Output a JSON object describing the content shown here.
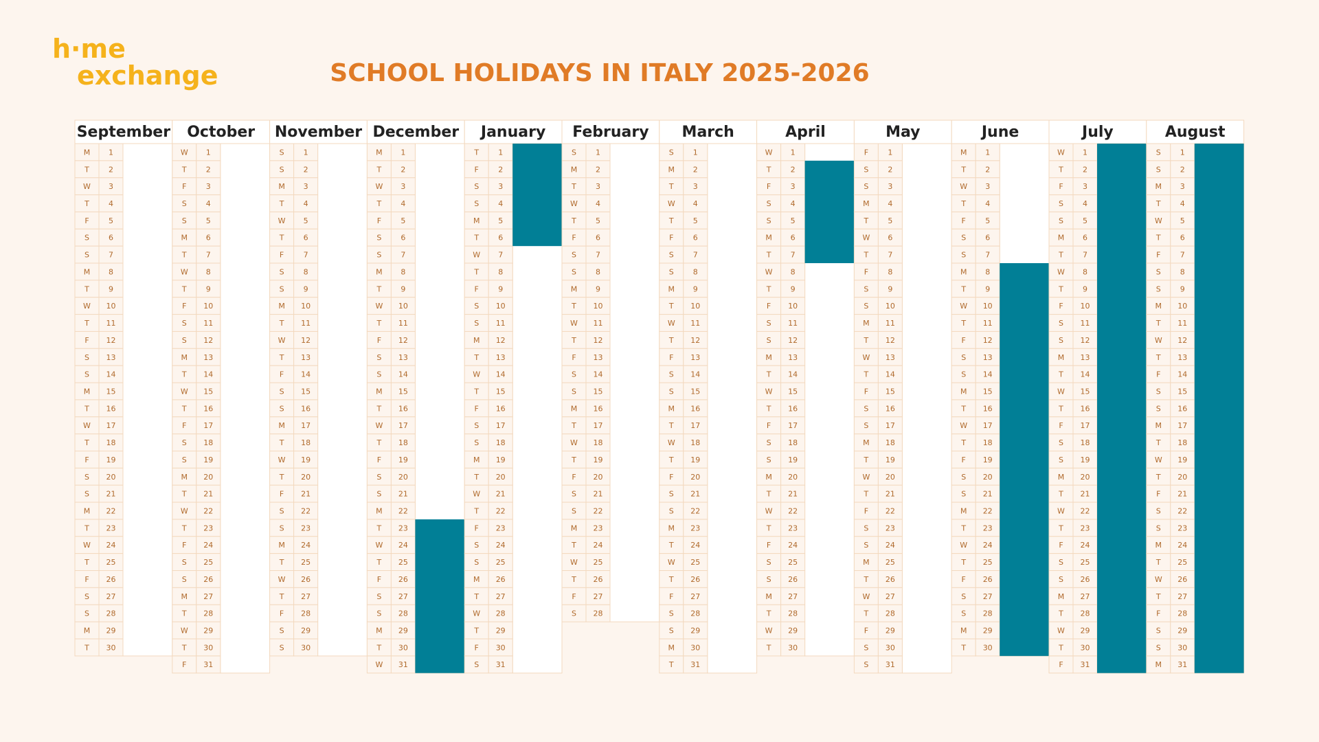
{
  "logo": [
    "h·me",
    "exchange"
  ],
  "title": "SCHOOL HOLIDAYS IN ITALY 2025-2026",
  "months": [
    {
      "name": "September",
      "weekdays": [
        "M",
        "T",
        "W",
        "T",
        "F",
        "S",
        "S",
        "M",
        "T",
        "W",
        "T",
        "F",
        "S",
        "S",
        "M",
        "T",
        "W",
        "T",
        "F",
        "S",
        "S",
        "M",
        "T",
        "W",
        "T",
        "F",
        "S",
        "S",
        "M",
        "T"
      ],
      "dates": [
        1,
        2,
        3,
        4,
        5,
        6,
        7,
        8,
        9,
        10,
        11,
        12,
        13,
        14,
        15,
        16,
        17,
        18,
        19,
        20,
        21,
        22,
        23,
        24,
        25,
        26,
        27,
        28,
        29,
        30
      ]
    },
    {
      "name": "October",
      "weekdays": [
        "W",
        "T",
        "F",
        "S",
        "S",
        "M",
        "T",
        "W",
        "T",
        "F",
        "S",
        "S",
        "M",
        "T",
        "W",
        "T",
        "F",
        "S",
        "S",
        "M",
        "T",
        "W",
        "T",
        "F",
        "S",
        "S",
        "M",
        "T",
        "W",
        "T",
        "F"
      ],
      "dates": [
        1,
        2,
        3,
        4,
        5,
        6,
        7,
        8,
        9,
        10,
        11,
        12,
        13,
        14,
        15,
        16,
        17,
        18,
        19,
        20,
        21,
        22,
        23,
        24,
        25,
        26,
        27,
        28,
        29,
        30,
        31
      ]
    },
    {
      "name": "November",
      "weekdays": [
        "S",
        "S",
        "M",
        "T",
        "W",
        "T",
        "F",
        "S",
        "S",
        "M",
        "T",
        "W",
        "T",
        "F",
        "S",
        "S",
        "M",
        "T",
        "W",
        "T",
        "F",
        "S",
        "S",
        "M",
        "T",
        "W",
        "T",
        "F",
        "S",
        "S"
      ],
      "dates": [
        1,
        2,
        3,
        4,
        5,
        6,
        7,
        8,
        9,
        10,
        11,
        12,
        13,
        14,
        15,
        16,
        17,
        18,
        19,
        20,
        21,
        22,
        23,
        24,
        25,
        26,
        27,
        28,
        29,
        30
      ]
    },
    {
      "name": "December",
      "weekdays": [
        "M",
        "T",
        "W",
        "T",
        "F",
        "S",
        "S",
        "M",
        "T",
        "W",
        "T",
        "F",
        "S",
        "S",
        "M",
        "T",
        "W",
        "T",
        "F",
        "S",
        "S",
        "M",
        "T",
        "W",
        "T",
        "F",
        "S",
        "S",
        "M",
        "T",
        "W"
      ],
      "dates": [
        1,
        2,
        3,
        4,
        5,
        6,
        7,
        8,
        9,
        10,
        11,
        12,
        13,
        14,
        15,
        16,
        17,
        18,
        19,
        20,
        21,
        22,
        23,
        24,
        25,
        26,
        27,
        28,
        29,
        30,
        31
      ],
      "holiday": [
        23,
        31
      ]
    },
    {
      "name": "January",
      "weekdays": [
        "T",
        "F",
        "S",
        "S",
        "M",
        "T",
        "W",
        "T",
        "F",
        "S",
        "S",
        "M",
        "T",
        "W",
        "T",
        "F",
        "S",
        "S",
        "M",
        "T",
        "W",
        "T",
        "F",
        "S",
        "S",
        "M",
        "T",
        "W",
        "T",
        "F",
        "S"
      ],
      "dates": [
        1,
        2,
        3,
        4,
        5,
        6,
        7,
        8,
        9,
        10,
        11,
        12,
        13,
        14,
        15,
        16,
        17,
        18,
        19,
        20,
        21,
        22,
        23,
        24,
        25,
        26,
        27,
        28,
        29,
        30,
        31
      ],
      "holiday": [
        1,
        6
      ]
    },
    {
      "name": "February",
      "weekdays": [
        "S",
        "M",
        "T",
        "W",
        "T",
        "F",
        "S",
        "S",
        "M",
        "T",
        "W",
        "T",
        "F",
        "S",
        "S",
        "M",
        "T",
        "W",
        "T",
        "F",
        "S",
        "S",
        "M",
        "T",
        "W",
        "T",
        "F",
        "S"
      ],
      "dates": [
        1,
        2,
        3,
        4,
        5,
        6,
        7,
        8,
        9,
        10,
        11,
        12,
        13,
        14,
        15,
        16,
        17,
        18,
        19,
        20,
        21,
        22,
        23,
        24,
        25,
        26,
        27,
        28
      ]
    },
    {
      "name": "March",
      "weekdays": [
        "S",
        "M",
        "T",
        "W",
        "T",
        "F",
        "S",
        "S",
        "M",
        "T",
        "W",
        "T",
        "F",
        "S",
        "S",
        "M",
        "T",
        "W",
        "T",
        "F",
        "S",
        "S",
        "M",
        "T",
        "W",
        "T",
        "F",
        "S",
        "S",
        "M",
        "T"
      ],
      "dates": [
        1,
        2,
        3,
        4,
        5,
        6,
        7,
        8,
        9,
        10,
        11,
        12,
        13,
        14,
        15,
        16,
        17,
        18,
        19,
        20,
        21,
        22,
        23,
        24,
        25,
        26,
        27,
        28,
        29,
        30,
        31
      ]
    },
    {
      "name": "April",
      "weekdays": [
        "W",
        "T",
        "F",
        "S",
        "S",
        "M",
        "T",
        "W",
        "T",
        "F",
        "S",
        "S",
        "M",
        "T",
        "W",
        "T",
        "F",
        "S",
        "S",
        "M",
        "T",
        "W",
        "T",
        "F",
        "S",
        "S",
        "M",
        "T",
        "W",
        "T"
      ],
      "dates": [
        1,
        2,
        3,
        4,
        5,
        6,
        7,
        8,
        9,
        10,
        11,
        12,
        13,
        14,
        15,
        16,
        17,
        18,
        19,
        20,
        21,
        22,
        23,
        24,
        25,
        26,
        27,
        28,
        29,
        30
      ],
      "holiday": [
        2,
        7
      ]
    },
    {
      "name": "May",
      "weekdays": [
        "F",
        "S",
        "S",
        "M",
        "T",
        "W",
        "T",
        "F",
        "S",
        "S",
        "M",
        "T",
        "W",
        "T",
        "F",
        "S",
        "S",
        "M",
        "T",
        "W",
        "T",
        "F",
        "S",
        "S",
        "M",
        "T",
        "W",
        "T",
        "F",
        "S",
        "S"
      ],
      "dates": [
        1,
        2,
        3,
        4,
        5,
        6,
        7,
        8,
        9,
        10,
        11,
        12,
        13,
        14,
        15,
        16,
        17,
        18,
        19,
        20,
        21,
        22,
        23,
        24,
        25,
        26,
        27,
        28,
        29,
        30,
        31
      ]
    },
    {
      "name": "June",
      "weekdays": [
        "M",
        "T",
        "W",
        "T",
        "F",
        "S",
        "S",
        "M",
        "T",
        "W",
        "T",
        "F",
        "S",
        "S",
        "M",
        "T",
        "W",
        "T",
        "F",
        "S",
        "S",
        "M",
        "T",
        "W",
        "T",
        "F",
        "S",
        "S",
        "M",
        "T"
      ],
      "dates": [
        1,
        2,
        3,
        4,
        5,
        6,
        7,
        8,
        9,
        10,
        11,
        12,
        13,
        14,
        15,
        16,
        17,
        18,
        19,
        20,
        21,
        22,
        23,
        24,
        25,
        26,
        27,
        28,
        29,
        30
      ],
      "holiday": [
        8,
        30
      ]
    },
    {
      "name": "July",
      "weekdays": [
        "W",
        "T",
        "F",
        "S",
        "S",
        "M",
        "T",
        "W",
        "T",
        "F",
        "S",
        "S",
        "M",
        "T",
        "W",
        "T",
        "F",
        "S",
        "S",
        "M",
        "T",
        "W",
        "T",
        "F",
        "S",
        "S",
        "M",
        "T",
        "W",
        "T",
        "F"
      ],
      "dates": [
        1,
        2,
        3,
        4,
        5,
        6,
        7,
        8,
        9,
        10,
        11,
        12,
        13,
        14,
        15,
        16,
        17,
        18,
        19,
        20,
        21,
        22,
        23,
        24,
        25,
        26,
        27,
        28,
        29,
        30,
        31
      ],
      "holiday": [
        1,
        31
      ]
    },
    {
      "name": "August",
      "weekdays": [
        "S",
        "S",
        "M",
        "T",
        "W",
        "T",
        "F",
        "S",
        "S",
        "M",
        "T",
        "W",
        "T",
        "F",
        "S",
        "S",
        "M",
        "T",
        "W",
        "T",
        "F",
        "S",
        "S",
        "M",
        "T",
        "W",
        "T",
        "F",
        "S",
        "S",
        "M"
      ],
      "dates": [
        1,
        2,
        3,
        4,
        5,
        6,
        7,
        8,
        9,
        10,
        11,
        12,
        13,
        14,
        15,
        16,
        17,
        18,
        19,
        20,
        21,
        22,
        23,
        24,
        25,
        26,
        27,
        28,
        29,
        30,
        31
      ],
      "holiday": [
        1,
        31
      ]
    }
  ]
}
